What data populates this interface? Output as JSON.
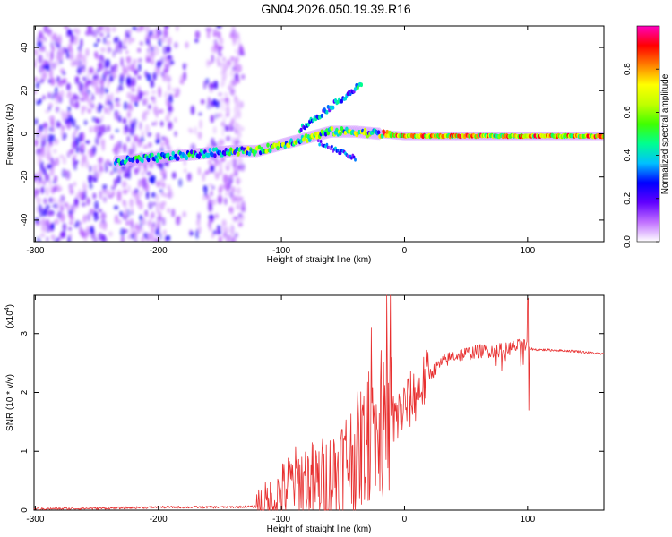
{
  "title": "GN04.2026.050.19.39.R16",
  "chart_data": [
    {
      "type": "heatmap",
      "name": "spectrogram",
      "xlabel": "Height of straight line (km)",
      "ylabel": "Frequency (Hz)",
      "xlim": [
        -301,
        162
      ],
      "ylim": [
        -50,
        50
      ],
      "xticks": [
        -300,
        -200,
        -100,
        0,
        100
      ],
      "xtick_labels": [
        "-300",
        "-200",
        "-100",
        "0",
        "100"
      ],
      "yticks": [
        -40,
        -20,
        0,
        20,
        40
      ],
      "ytick_labels": [
        "-40",
        "-20",
        "0",
        "20",
        "40"
      ],
      "trace": {
        "x": [
          -235,
          -200,
          -160,
          -140,
          -120,
          -100,
          -80,
          -60,
          -40,
          -20,
          0,
          20,
          50,
          80,
          100,
          130,
          162
        ],
        "freq": [
          -13,
          -11,
          -9,
          -8,
          -8,
          -5,
          -2,
          1,
          1,
          0,
          -1,
          -1,
          -1,
          -1,
          -1,
          -1,
          -1
        ]
      },
      "colorbar": {
        "label": "Normalized spectral amplitude",
        "range": [
          0.0,
          1.0
        ],
        "ticks": [
          0.0,
          0.2,
          0.4,
          0.6,
          0.8
        ],
        "tick_labels": [
          "0.0",
          "0.2",
          "0.4",
          "0.6",
          "0.8"
        ],
        "colors": [
          "#ffffff",
          "#c070ff",
          "#6000ff",
          "#0000ff",
          "#00c0ff",
          "#00ff90",
          "#40ff00",
          "#c0ff00",
          "#ffff00",
          "#ff8000",
          "#ff0000",
          "#ff00c0"
        ]
      }
    },
    {
      "type": "line",
      "name": "snr",
      "xlabel": "Height of straight line (km)",
      "ylabel": "SNR (10 * v/v)",
      "scale_label": "(x10",
      "scale_exp": "4",
      "scale_close": ")",
      "xlim": [
        -301,
        162
      ],
      "ylim": [
        0,
        3.65
      ],
      "xticks": [
        -300,
        -200,
        -100,
        0,
        100
      ],
      "xtick_labels": [
        "-300",
        "-200",
        "-100",
        "0",
        "100"
      ],
      "yticks": [
        0,
        1,
        2,
        3
      ],
      "ytick_labels": [
        "0",
        "1",
        "2",
        "3"
      ],
      "color": "#e83030",
      "series": [
        {
          "name": "SNR",
          "x": [
            -301,
            -250,
            -200,
            -150,
            -120,
            -110,
            -100,
            -90,
            -80,
            -70,
            -60,
            -50,
            -40,
            -30,
            -20,
            -15,
            -10,
            -5,
            0,
            10,
            20,
            30,
            40,
            60,
            80,
            95,
            100,
            102,
            105,
            120,
            140,
            162
          ],
          "y": [
            0.02,
            0.03,
            0.05,
            0.05,
            0.06,
            0.1,
            0.3,
            0.5,
            0.5,
            0.45,
            0.55,
            0.8,
            0.95,
            1.2,
            1.3,
            1.4,
            1.5,
            1.6,
            1.75,
            2.0,
            2.3,
            2.5,
            2.62,
            2.7,
            2.72,
            2.8,
            2.78,
            2.75,
            2.73,
            2.72,
            2.7,
            2.65
          ]
        }
      ]
    }
  ]
}
